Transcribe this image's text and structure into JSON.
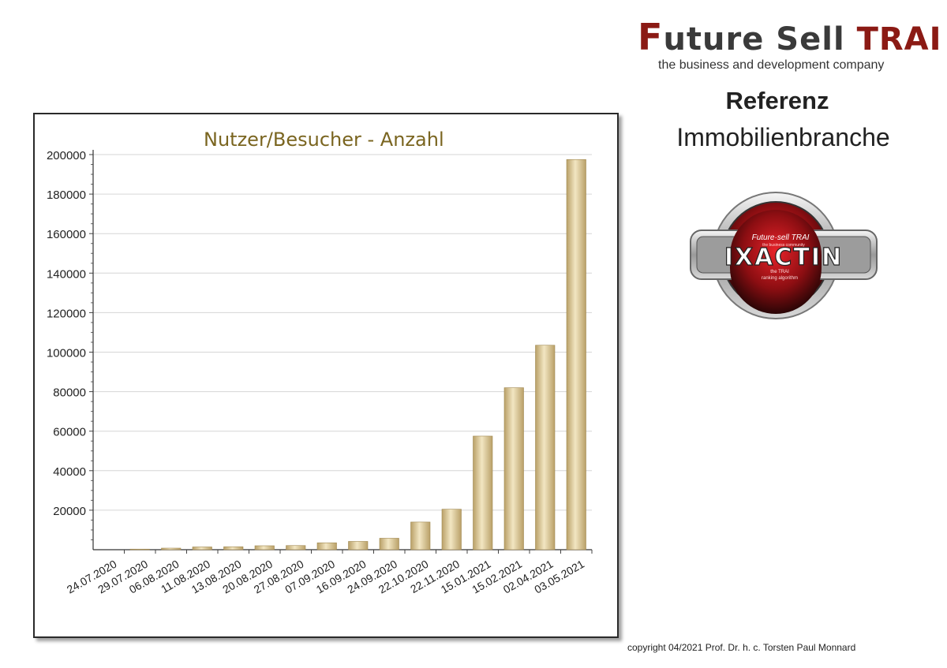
{
  "brand": {
    "logo_parts": [
      "F",
      "uture Sell ",
      "TRAI"
    ],
    "logo_text": "Future Sell TRAI",
    "tagline": "the business and development company"
  },
  "heading": {
    "title": "Referenz",
    "subtitle": "Immobilienbranche"
  },
  "badge": {
    "top_text": "Future·sell TRAI",
    "small_text": "the business community",
    "main_text": "IXACTIN",
    "line1": "the TRAI",
    "line2": "ranking algorithm"
  },
  "copyright": "copyright 04/2021 Prof. Dr. h. c. Torsten Paul Monnard",
  "chart_data": {
    "type": "bar",
    "title": "Nutzer/Besucher - Anzahl",
    "xlabel": "",
    "ylabel": "",
    "categories": [
      "24.07.2020",
      "29.07.2020",
      "06.08.2020",
      "11.08.2020",
      "13.08.2020",
      "20.08.2020",
      "27.08.2020",
      "07.09.2020",
      "16.09.2020",
      "24.09.2020",
      "22.10.2020",
      "22.11.2020",
      "15.01.2021",
      "15.02.2021",
      "02.04.2021",
      "03.05.2021"
    ],
    "values": [
      0,
      300,
      800,
      1400,
      1500,
      2000,
      2100,
      3500,
      4200,
      5800,
      14000,
      20500,
      57500,
      82000,
      103500,
      197500
    ],
    "ylim": [
      0,
      200000
    ],
    "yticks": [
      20000,
      40000,
      60000,
      80000,
      100000,
      120000,
      140000,
      160000,
      180000,
      200000
    ],
    "grid": true,
    "legend": "none",
    "bar_color_light": "#f2e6c2",
    "bar_color_dark": "#b9a068"
  },
  "colors": {
    "brand_red": "#8b1a14",
    "title_gold": "#7a6520"
  }
}
